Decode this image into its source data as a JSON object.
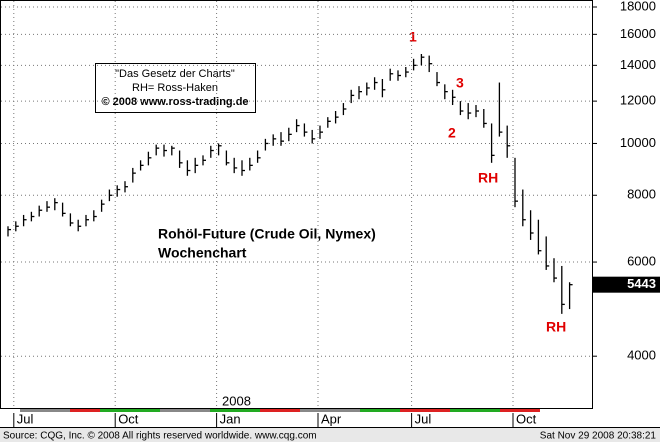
{
  "chart_data": {
    "type": "ohlc",
    "title": "Rohöl-Future (Crude Oil, Nymex)",
    "subtitle": "Wochenchart",
    "source_box": [
      "\"Das Gesetz der Charts\"",
      "RH= Ross-Haken",
      "© 2008 www.ross-trading.de"
    ],
    "annotations": [
      "1",
      "2",
      "3",
      "RH",
      "RH"
    ],
    "year_label": "2008",
    "footer_left": "Source: CQG, Inc. © 2008 All rights reserved worldwide. www.cqg.com",
    "footer_right": "Sat Nov 29 2008 20:38:21",
    "last_value": 5443,
    "color": "#000000",
    "log_scale": true,
    "grid": true,
    "categories": [
      null,
      "Jul",
      null,
      null,
      null,
      null,
      null,
      null,
      null,
      null,
      null,
      null,
      null,
      null,
      "Oct",
      null,
      null,
      null,
      null,
      null,
      null,
      null,
      null,
      null,
      null,
      null,
      null,
      "Jan",
      null,
      null,
      null,
      null,
      null,
      null,
      null,
      null,
      null,
      null,
      null,
      null,
      "Apr",
      null,
      null,
      null,
      null,
      null,
      null,
      null,
      null,
      null,
      null,
      null,
      "Jul",
      null,
      null,
      null,
      null,
      null,
      null,
      null,
      null,
      null,
      null,
      null,
      null,
      "Oct",
      null,
      null,
      null,
      null,
      null,
      null,
      null
    ],
    "high": [
      7000,
      7150,
      7350,
      7450,
      7650,
      7800,
      7900,
      7750,
      7400,
      7200,
      7350,
      7500,
      7850,
      8200,
      8350,
      8500,
      9000,
      9300,
      9650,
      9950,
      9950,
      9900,
      9700,
      9300,
      9400,
      9500,
      9900,
      10000,
      9700,
      9400,
      9300,
      9400,
      9700,
      10200,
      10400,
      10500,
      10700,
      11100,
      10900,
      10600,
      10800,
      11200,
      11500,
      11900,
      12600,
      12800,
      13000,
      13300,
      13200,
      13800,
      13700,
      13900,
      14400,
      14700,
      14600,
      13600,
      12900,
      12600,
      12000,
      11900,
      11800,
      11600,
      10900,
      13000,
      10800,
      9400,
      8200,
      7500,
      7200,
      6700,
      6100,
      5900,
      5500
    ],
    "low": [
      6700,
      6850,
      7000,
      7150,
      7300,
      7450,
      7500,
      7300,
      7000,
      6850,
      7000,
      7150,
      7450,
      7800,
      7950,
      8100,
      8450,
      8900,
      9100,
      9500,
      9450,
      9500,
      9000,
      8700,
      8800,
      9100,
      9400,
      9500,
      9100,
      8800,
      8700,
      8900,
      9200,
      9700,
      9900,
      9900,
      10100,
      10500,
      10300,
      10000,
      10200,
      10700,
      10900,
      11300,
      11900,
      12100,
      12300,
      12600,
      12200,
      13100,
      13100,
      13300,
      13700,
      14000,
      13600,
      12800,
      12100,
      11800,
      11300,
      11100,
      11200,
      10700,
      9200,
      10300,
      9400,
      7600,
      7000,
      6600,
      6200,
      5800,
      5500,
      4800,
      4900
    ],
    "close": [
      6900,
      7000,
      7200,
      7300,
      7500,
      7600,
      7750,
      7400,
      7100,
      7000,
      7200,
      7300,
      7700,
      8000,
      8200,
      8300,
      8800,
      9100,
      9400,
      9800,
      9700,
      9800,
      9200,
      8900,
      9100,
      9300,
      9700,
      9900,
      9200,
      9000,
      8900,
      9100,
      9400,
      10000,
      10200,
      10100,
      10400,
      10800,
      10500,
      10200,
      10500,
      11000,
      11200,
      11600,
      12300,
      12500,
      12700,
      13000,
      12600,
      13500,
      13400,
      13600,
      14000,
      14500,
      14100,
      13000,
      12500,
      12200,
      11500,
      11400,
      11500,
      10900,
      9500,
      10500,
      9900,
      7800,
      7200,
      6800,
      6300,
      5900,
      5600,
      5000,
      5443
    ],
    "ylim": [
      3200,
      18550
    ],
    "yticks": [
      4000,
      6000,
      8000,
      10000,
      12000,
      14000,
      16000,
      18000
    ]
  }
}
